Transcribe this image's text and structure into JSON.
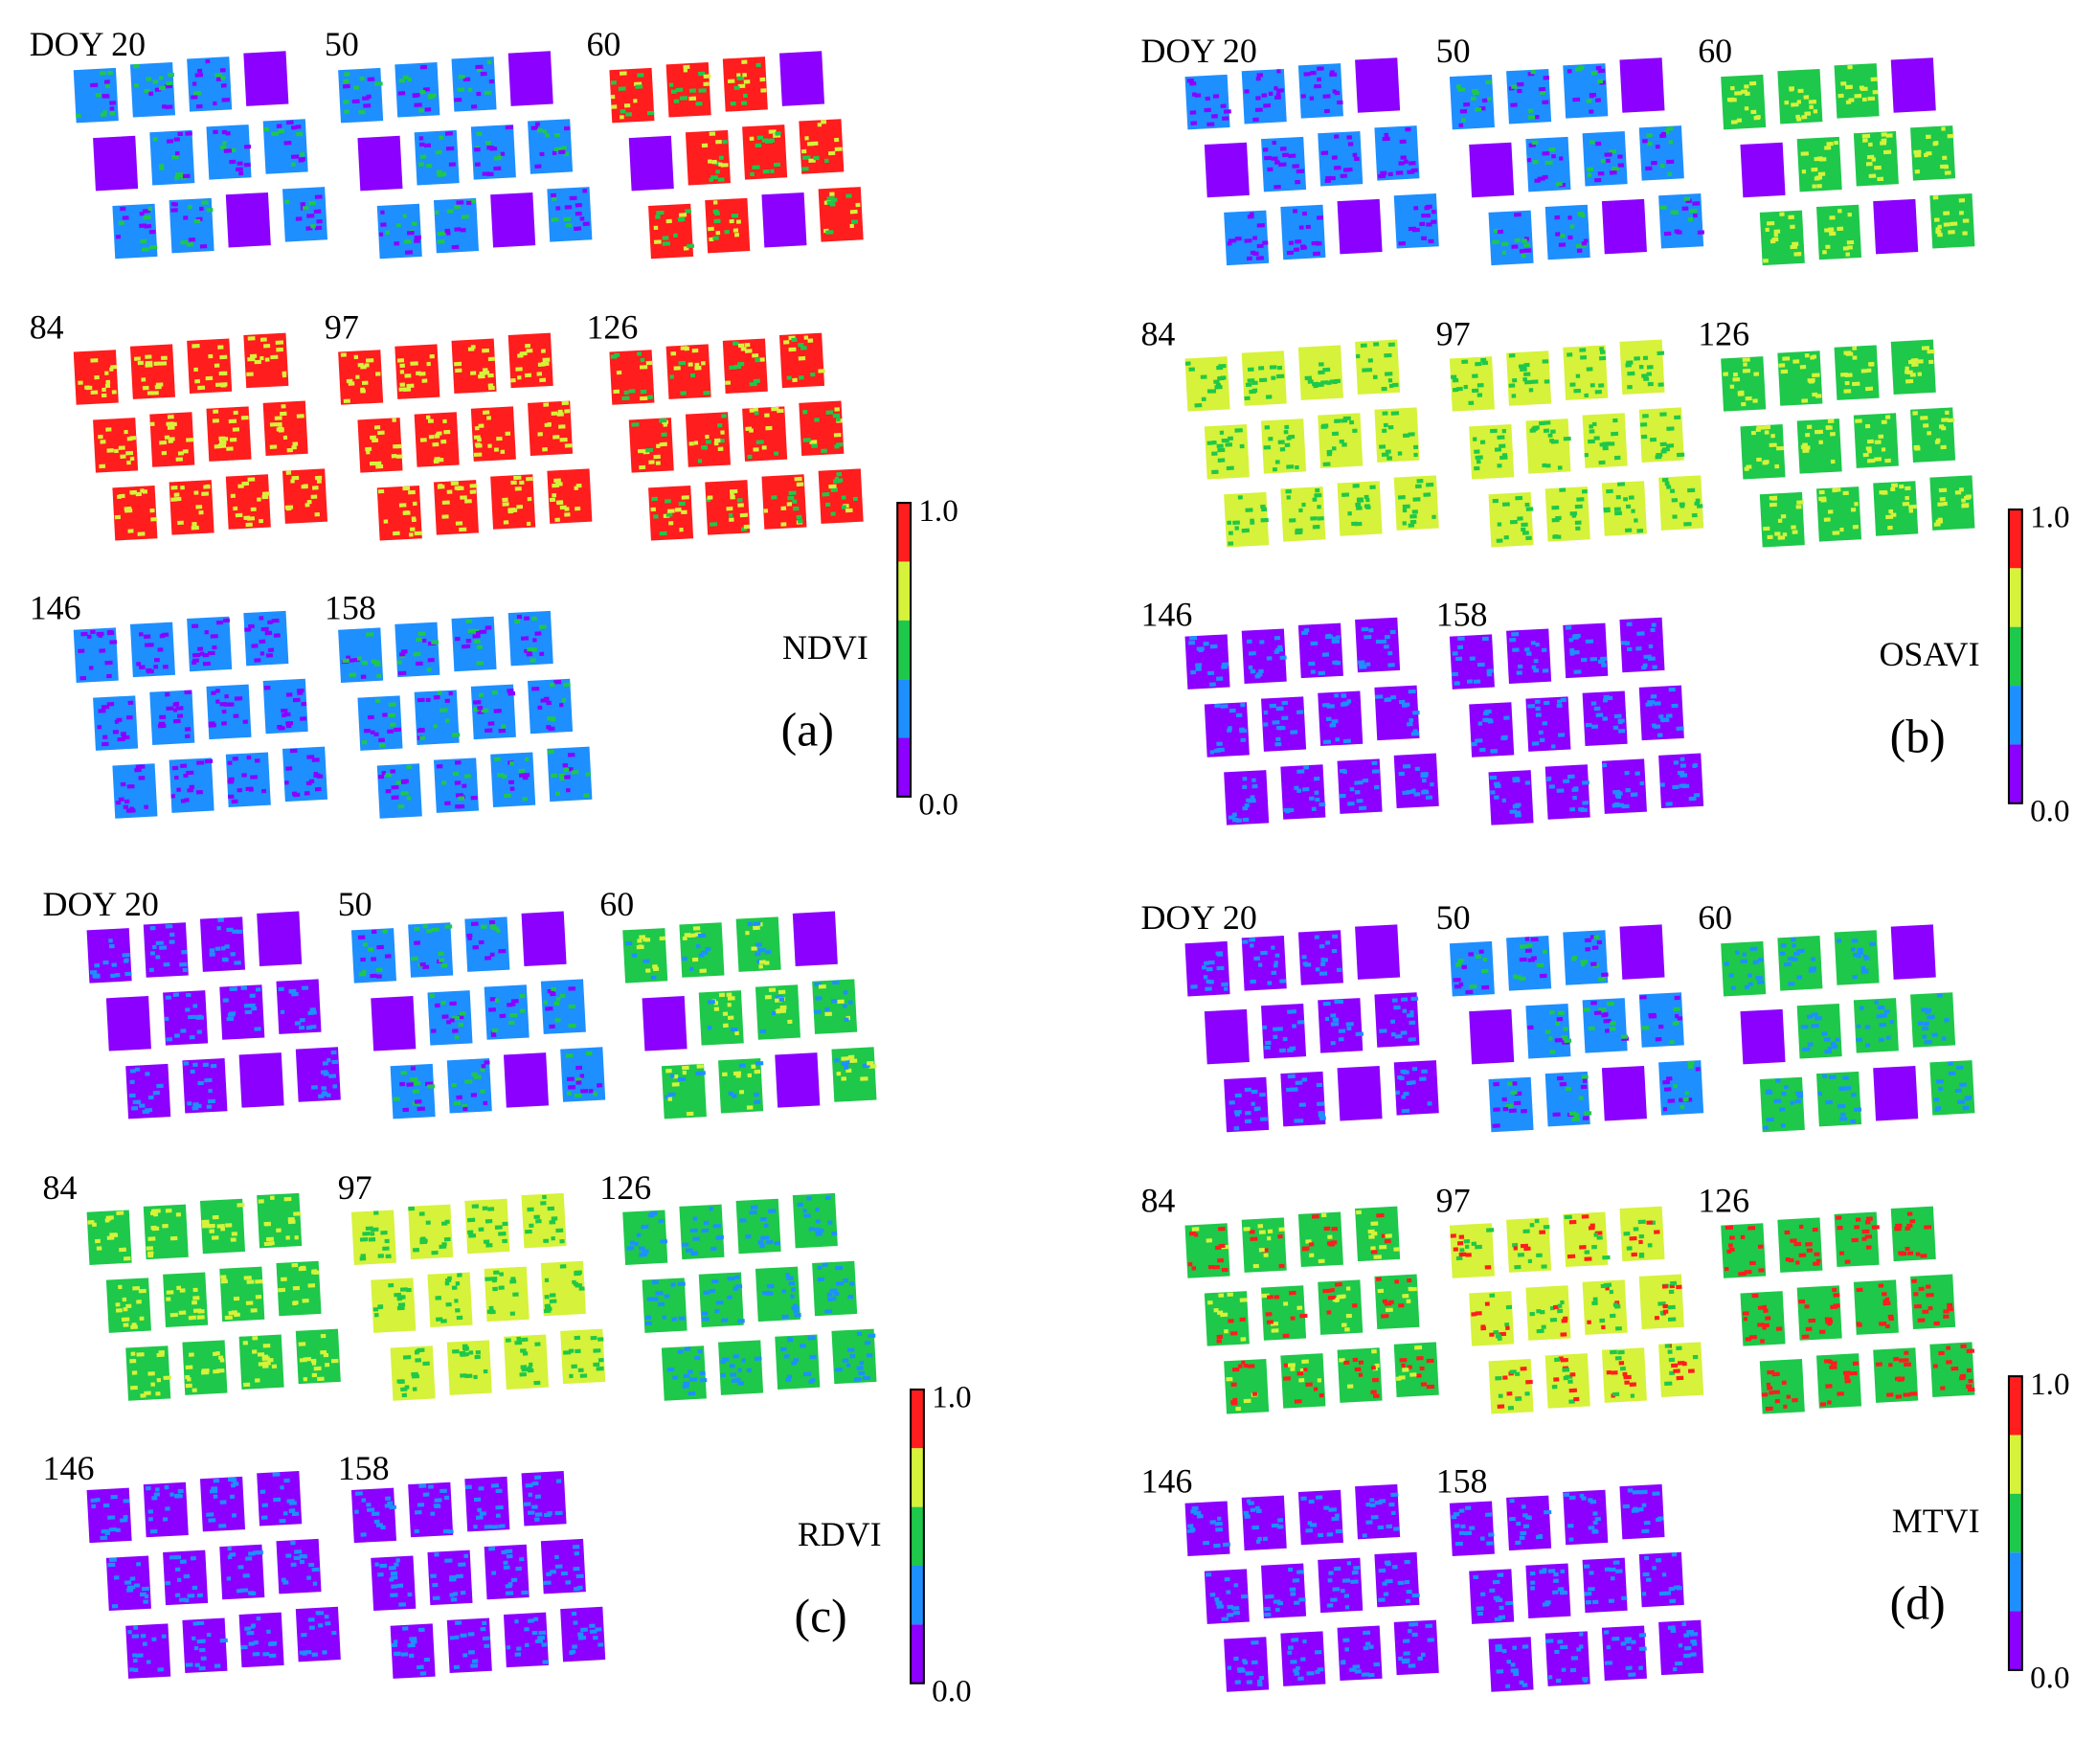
{
  "panels": [
    {
      "letter": "(a)",
      "index": "NDVI",
      "colorbar": {
        "max": "1.0",
        "min": "0.0"
      },
      "maps": [
        {
          "label": "DOY 20"
        },
        {
          "label": "50"
        },
        {
          "label": "60"
        },
        {
          "label": "84"
        },
        {
          "label": "97"
        },
        {
          "label": "126"
        },
        {
          "label": "146"
        },
        {
          "label": "158"
        }
      ]
    },
    {
      "letter": "(b)",
      "index": "OSAVI",
      "colorbar": {
        "max": "1.0",
        "min": "0.0"
      },
      "maps": [
        {
          "label": "DOY 20"
        },
        {
          "label": "50"
        },
        {
          "label": "60"
        },
        {
          "label": "84"
        },
        {
          "label": "97"
        },
        {
          "label": "126"
        },
        {
          "label": "146"
        },
        {
          "label": "158"
        }
      ]
    },
    {
      "letter": "(c)",
      "index": "RDVI",
      "colorbar": {
        "max": "1.0",
        "min": "0.0"
      },
      "maps": [
        {
          "label": "DOY 20"
        },
        {
          "label": "50"
        },
        {
          "label": "60"
        },
        {
          "label": "84"
        },
        {
          "label": "97"
        },
        {
          "label": "126"
        },
        {
          "label": "146"
        },
        {
          "label": "158"
        }
      ]
    },
    {
      "letter": "(d)",
      "index": "MTVI",
      "colorbar": {
        "max": "1.0",
        "min": "0.0"
      },
      "maps": [
        {
          "label": "DOY 20"
        },
        {
          "label": "50"
        },
        {
          "label": "60"
        },
        {
          "label": "84"
        },
        {
          "label": "97"
        },
        {
          "label": "126"
        },
        {
          "label": "146"
        },
        {
          "label": "158"
        }
      ]
    }
  ]
}
